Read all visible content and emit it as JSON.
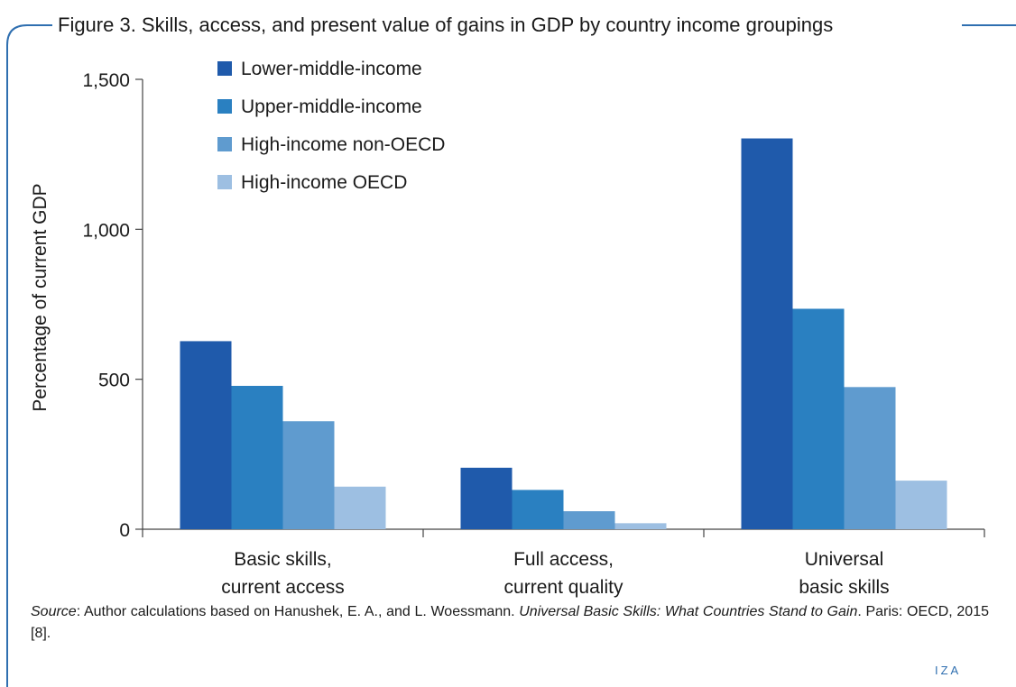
{
  "figure": {
    "title": "Figure 3. Skills, access, and present value of gains in GDP by country income groupings"
  },
  "source": {
    "label": "Source",
    "text_before": ": Author calculations based on Hanushek, E. A., and L. Woessmann. ",
    "book_title": "Universal Basic Skills: What Countries Stand to Gain",
    "text_after": ". Paris: OECD, 2015 [8]."
  },
  "branding": {
    "logo_text": "IZA"
  },
  "colors": {
    "frame": "#2f6fb0",
    "series": [
      "#1f5aab",
      "#2a80c1",
      "#5f9bcf",
      "#9dbfe2"
    ],
    "axis": "#444444"
  },
  "chart_data": {
    "type": "bar",
    "ylabel": "Percentage of current GDP",
    "xlabel": "",
    "ylim": [
      0,
      1500
    ],
    "yticks": [
      0,
      500,
      1000,
      1500
    ],
    "ytick_labels": [
      "0",
      "500",
      "1,000",
      "1,500"
    ],
    "legend_position": "top-left",
    "grid": false,
    "categories": [
      [
        "Basic skills,",
        "current access"
      ],
      [
        "Full access,",
        "current quality"
      ],
      [
        "Universal",
        "basic skills"
      ]
    ],
    "series": [
      {
        "name": "Lower-middle-income",
        "values": [
          627,
          205,
          1303
        ]
      },
      {
        "name": "Upper-middle-income",
        "values": [
          478,
          131,
          735
        ]
      },
      {
        "name": "High-income non-OECD",
        "values": [
          360,
          60,
          474
        ]
      },
      {
        "name": "High-income OECD",
        "values": [
          142,
          20,
          162
        ]
      }
    ]
  }
}
